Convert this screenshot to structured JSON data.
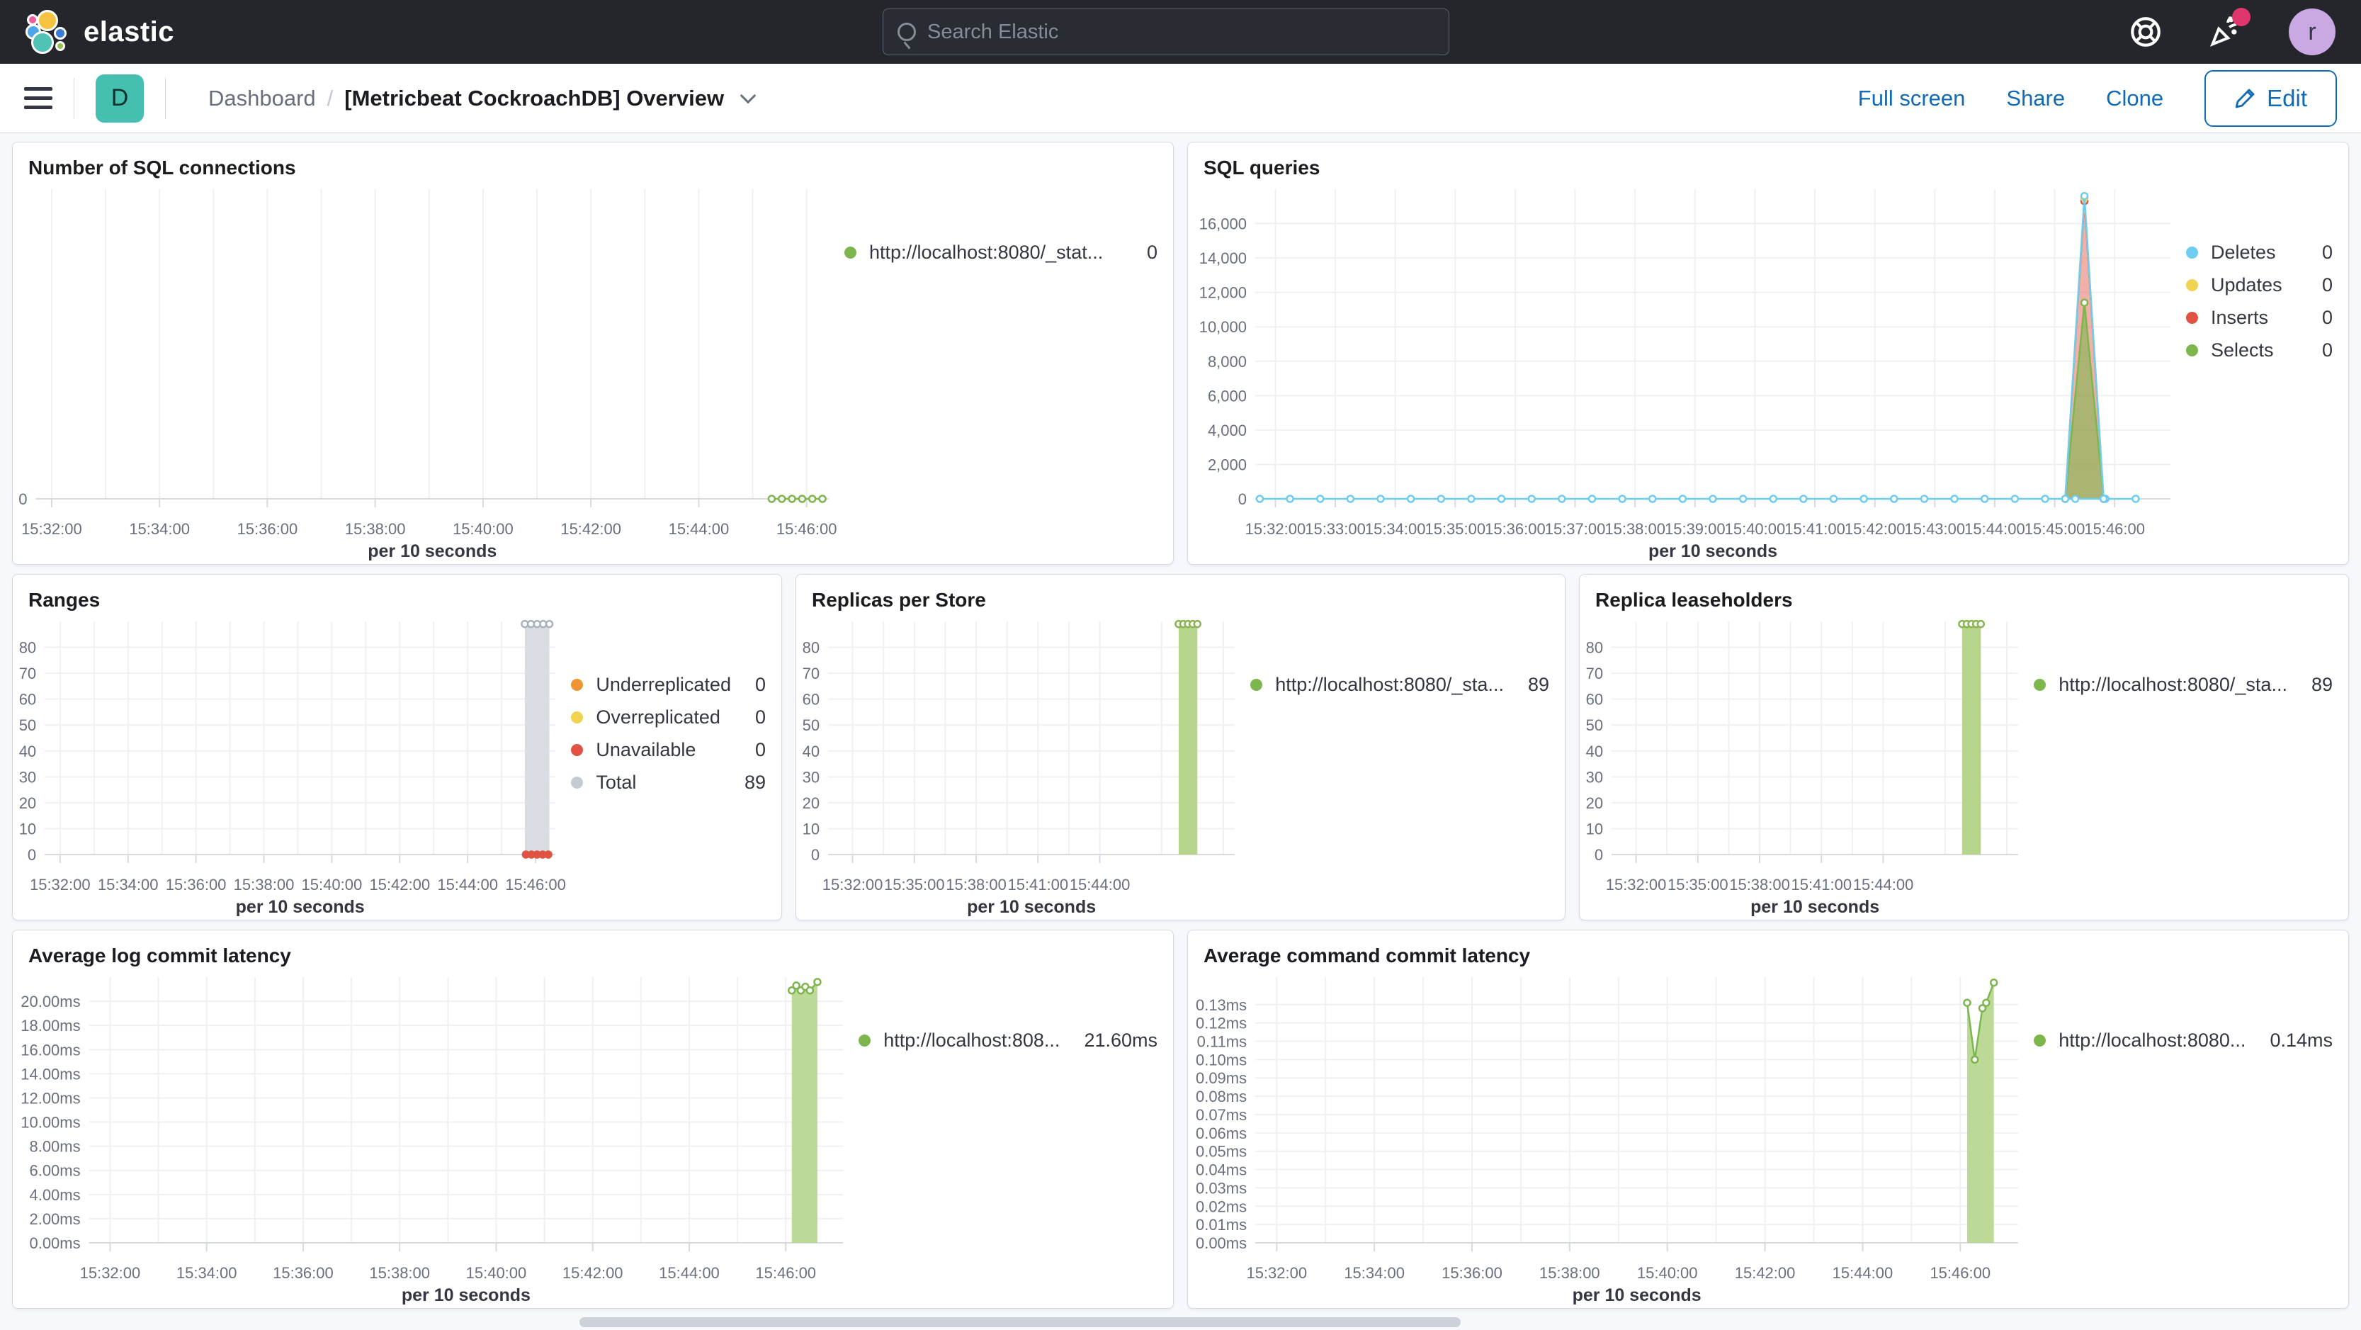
{
  "header": {
    "brand": "elastic",
    "search_placeholder": "Search Elastic",
    "avatar_initial": "r",
    "icons": [
      "help-icon",
      "news-icon",
      "user-avatar"
    ]
  },
  "navbar": {
    "space_badge": "D",
    "breadcrumb_root": "Dashboard",
    "breadcrumb_sep": "/",
    "title": "[Metricbeat CockroachDB] Overview",
    "action_fullscreen": "Full screen",
    "action_share": "Share",
    "action_clone": "Clone",
    "edit_label": "Edit"
  },
  "colors": {
    "green": "#7db64d",
    "green_fill": "#bcd998",
    "blue": "#6dccef",
    "yellow": "#f0d351",
    "red": "#e05343",
    "orange": "#ef9533",
    "gray": "#d9dce2",
    "gray_stroke": "#aab1bc",
    "accent_blue": "#0f6bb5",
    "teal_badge": "#45c0b0"
  },
  "chart_data": [
    {
      "type": "line",
      "title": "Number of SQL connections",
      "xlabel": "per 10 seconds",
      "ylim": [
        0,
        8
      ],
      "y_ticks": [
        {
          "v": 0,
          "label": "0"
        }
      ],
      "x_ticks": [
        {
          "f": 0.02,
          "label": "15:32:00"
        },
        {
          "f": 0.156,
          "label": "15:34:00"
        },
        {
          "f": 0.292,
          "label": "15:36:00"
        },
        {
          "f": 0.428,
          "label": "15:38:00"
        },
        {
          "f": 0.564,
          "label": "15:40:00"
        },
        {
          "f": 0.7,
          "label": "15:42:00"
        },
        {
          "f": 0.836,
          "label": "15:44:00"
        },
        {
          "f": 0.972,
          "label": "15:46:00"
        }
      ],
      "grid_minor": true,
      "series": [
        {
          "name": "http://localhost:8080/_stat...",
          "color": "#7db64d",
          "flat": {
            "value": 0,
            "x0": 0.928,
            "x1": 0.992,
            "markers": 6
          }
        }
      ],
      "legend": [
        {
          "label": "http://localhost:8080/_stat...",
          "value": "0",
          "color": "#7db64d"
        }
      ]
    },
    {
      "type": "line",
      "title": "SQL queries",
      "xlabel": "per 10 seconds",
      "ylim": [
        0,
        18000
      ],
      "y_ticks": [
        {
          "v": 16000,
          "label": "16,000"
        },
        {
          "v": 14000,
          "label": "14,000"
        },
        {
          "v": 12000,
          "label": "12,000"
        },
        {
          "v": 10000,
          "label": "10,000"
        },
        {
          "v": 8000,
          "label": "8,000"
        },
        {
          "v": 6000,
          "label": "6,000"
        },
        {
          "v": 4000,
          "label": "4,000"
        },
        {
          "v": 2000,
          "label": "2,000"
        },
        {
          "v": 0,
          "label": "0"
        }
      ],
      "x_ticks": [
        {
          "f": 0.022,
          "label": "15:32:00"
        },
        {
          "f": 0.0875,
          "label": "15:33:00"
        },
        {
          "f": 0.153,
          "label": "15:34:00"
        },
        {
          "f": 0.2185,
          "label": "15:35:00"
        },
        {
          "f": 0.284,
          "label": "15:36:00"
        },
        {
          "f": 0.3495,
          "label": "15:37:00"
        },
        {
          "f": 0.415,
          "label": "15:38:00"
        },
        {
          "f": 0.4805,
          "label": "15:39:00"
        },
        {
          "f": 0.546,
          "label": "15:40:00"
        },
        {
          "f": 0.6115,
          "label": "15:41:00"
        },
        {
          "f": 0.677,
          "label": "15:42:00"
        },
        {
          "f": 0.7425,
          "label": "15:43:00"
        },
        {
          "f": 0.808,
          "label": "15:44:00"
        },
        {
          "f": 0.8735,
          "label": "15:45:00"
        },
        {
          "f": 0.939,
          "label": "15:46:00"
        }
      ],
      "grid_minor": false,
      "series": [
        {
          "name": "Inserts",
          "color": "#e05343",
          "fill": "rgba(224,83,67,0.45)",
          "points": [
            [
              0.885,
              0
            ],
            [
              0.906,
              17300
            ],
            [
              0.927,
              0
            ]
          ],
          "markers": true
        },
        {
          "name": "Selects",
          "color": "#7db64d",
          "fill": "rgba(125,182,77,0.6)",
          "points": [
            [
              0.885,
              0
            ],
            [
              0.906,
              11400
            ],
            [
              0.927,
              0
            ]
          ],
          "markers": true
        },
        {
          "name": "Updates",
          "color": "#f0d351",
          "points": [
            [
              0.885,
              0
            ],
            [
              0.906,
              17500
            ],
            [
              0.927,
              0
            ]
          ],
          "markers": true
        },
        {
          "name": "Deletes",
          "color": "#6dccef",
          "flat": {
            "value": 0,
            "x0": 0.005,
            "x1": 0.962,
            "markers": 30
          },
          "points": [
            [
              0.885,
              0
            ],
            [
              0.906,
              17600
            ],
            [
              0.927,
              0
            ]
          ],
          "markers": true
        }
      ],
      "legend": [
        {
          "label": "Deletes",
          "value": "0",
          "color": "#6dccef"
        },
        {
          "label": "Updates",
          "value": "0",
          "color": "#f0d351"
        },
        {
          "label": "Inserts",
          "value": "0",
          "color": "#e05343"
        },
        {
          "label": "Selects",
          "value": "0",
          "color": "#7db64d"
        }
      ]
    },
    {
      "type": "bar",
      "title": "Ranges",
      "xlabel": "per 10 seconds",
      "ylim": [
        0,
        90
      ],
      "y_ticks": [
        {
          "v": 80,
          "label": "80"
        },
        {
          "v": 70,
          "label": "70"
        },
        {
          "v": 60,
          "label": "60"
        },
        {
          "v": 50,
          "label": "50"
        },
        {
          "v": 40,
          "label": "40"
        },
        {
          "v": 30,
          "label": "30"
        },
        {
          "v": 20,
          "label": "20"
        },
        {
          "v": 10,
          "label": "10"
        },
        {
          "v": 0,
          "label": "0"
        }
      ],
      "x_ticks": [
        {
          "f": 0.03,
          "label": "15:32:00"
        },
        {
          "f": 0.163,
          "label": "15:34:00"
        },
        {
          "f": 0.296,
          "label": "15:36:00"
        },
        {
          "f": 0.429,
          "label": "15:38:00"
        },
        {
          "f": 0.562,
          "label": "15:40:00"
        },
        {
          "f": 0.695,
          "label": "15:42:00"
        },
        {
          "f": 0.828,
          "label": "15:44:00"
        },
        {
          "f": 0.961,
          "label": "15:46:00"
        }
      ],
      "grid_minor": true,
      "series": [
        {
          "name": "Total",
          "color": "#aab1bc",
          "bar": {
            "x0": 0.94,
            "x1": 0.988,
            "value": 89,
            "fill": "#d9dce2",
            "top_markers": 5
          }
        },
        {
          "name": "Unavailable",
          "color": "#e05343",
          "flat": {
            "value": 0,
            "x0": 0.942,
            "x1": 0.986,
            "markers": 5,
            "solid": true
          }
        }
      ],
      "legend": [
        {
          "label": "Underreplicated",
          "value": "0",
          "color": "#ef9533"
        },
        {
          "label": "Overreplicated",
          "value": "0",
          "color": "#f0d351"
        },
        {
          "label": "Unavailable",
          "value": "0",
          "color": "#e05343"
        },
        {
          "label": "Total",
          "value": "89",
          "color": "#c6cbd3"
        }
      ]
    },
    {
      "type": "bar",
      "title": "Replicas per Store",
      "xlabel": "per 10 seconds",
      "ylim": [
        0,
        90
      ],
      "y_ticks": [
        {
          "v": 80,
          "label": "80"
        },
        {
          "v": 70,
          "label": "70"
        },
        {
          "v": 60,
          "label": "60"
        },
        {
          "v": 50,
          "label": "50"
        },
        {
          "v": 40,
          "label": "40"
        },
        {
          "v": 30,
          "label": "30"
        },
        {
          "v": 20,
          "label": "20"
        },
        {
          "v": 10,
          "label": "10"
        },
        {
          "v": 0,
          "label": "0"
        }
      ],
      "x_ticks": [
        {
          "f": 0.06,
          "label": "15:32:00"
        },
        {
          "f": 0.212,
          "label": "15:35:00"
        },
        {
          "f": 0.364,
          "label": "15:38:00"
        },
        {
          "f": 0.516,
          "label": "15:41:00"
        },
        {
          "f": 0.668,
          "label": "15:44:00"
        }
      ],
      "grid_minor": true,
      "grid_extra": [
        0.82,
        0.972
      ],
      "series": [
        {
          "name": "http://localhost:8080/_sta...",
          "color": "#8ab44f",
          "bar": {
            "x0": 0.862,
            "x1": 0.908,
            "value": 89,
            "fill": "#b7d48b",
            "top_markers": 5
          }
        }
      ],
      "legend": [
        {
          "label": "http://localhost:8080/_sta...",
          "value": "89",
          "color": "#7db64d"
        }
      ]
    },
    {
      "type": "bar",
      "title": "Replica leaseholders",
      "xlabel": "per 10 seconds",
      "ylim": [
        0,
        90
      ],
      "y_ticks": [
        {
          "v": 80,
          "label": "80"
        },
        {
          "v": 70,
          "label": "70"
        },
        {
          "v": 60,
          "label": "60"
        },
        {
          "v": 50,
          "label": "50"
        },
        {
          "v": 40,
          "label": "40"
        },
        {
          "v": 30,
          "label": "30"
        },
        {
          "v": 20,
          "label": "20"
        },
        {
          "v": 10,
          "label": "10"
        },
        {
          "v": 0,
          "label": "0"
        }
      ],
      "x_ticks": [
        {
          "f": 0.06,
          "label": "15:32:00"
        },
        {
          "f": 0.212,
          "label": "15:35:00"
        },
        {
          "f": 0.364,
          "label": "15:38:00"
        },
        {
          "f": 0.516,
          "label": "15:41:00"
        },
        {
          "f": 0.668,
          "label": "15:44:00"
        }
      ],
      "grid_minor": true,
      "grid_extra": [
        0.82,
        0.972
      ],
      "series": [
        {
          "name": "http://localhost:8080/_sta...",
          "color": "#8ab44f",
          "bar": {
            "x0": 0.862,
            "x1": 0.908,
            "value": 89,
            "fill": "#b7d48b",
            "top_markers": 5
          }
        }
      ],
      "legend": [
        {
          "label": "http://localhost:8080/_sta...",
          "value": "89",
          "color": "#7db64d"
        }
      ]
    },
    {
      "type": "area",
      "title": "Average log commit latency",
      "xlabel": "per 10 seconds",
      "ylim": [
        0,
        22
      ],
      "y_ticks": [
        {
          "v": 20,
          "label": "20.00ms"
        },
        {
          "v": 18,
          "label": "18.00ms"
        },
        {
          "v": 16,
          "label": "16.00ms"
        },
        {
          "v": 14,
          "label": "14.00ms"
        },
        {
          "v": 12,
          "label": "12.00ms"
        },
        {
          "v": 10,
          "label": "10.00ms"
        },
        {
          "v": 8,
          "label": "8.00ms"
        },
        {
          "v": 6,
          "label": "6.00ms"
        },
        {
          "v": 4,
          "label": "4.00ms"
        },
        {
          "v": 2,
          "label": "2.00ms"
        },
        {
          "v": 0,
          "label": "0.00ms"
        }
      ],
      "x_ticks": [
        {
          "f": 0.028,
          "label": "15:32:00"
        },
        {
          "f": 0.156,
          "label": "15:34:00"
        },
        {
          "f": 0.284,
          "label": "15:36:00"
        },
        {
          "f": 0.412,
          "label": "15:38:00"
        },
        {
          "f": 0.54,
          "label": "15:40:00"
        },
        {
          "f": 0.668,
          "label": "15:42:00"
        },
        {
          "f": 0.796,
          "label": "15:44:00"
        },
        {
          "f": 0.924,
          "label": "15:46:00"
        }
      ],
      "grid_minor": true,
      "series": [
        {
          "name": "http://localhost:808...",
          "color": "#7db64d",
          "fill": "#bcd998",
          "points": [
            [
              0.932,
              20.9
            ],
            [
              0.938,
              21.3
            ],
            [
              0.944,
              20.9
            ],
            [
              0.95,
              21.2
            ],
            [
              0.956,
              20.9
            ],
            [
              0.966,
              21.6
            ]
          ],
          "markers": true
        }
      ],
      "legend": [
        {
          "label": "http://localhost:808...",
          "value": "21.60ms",
          "color": "#7db64d"
        }
      ]
    },
    {
      "type": "area",
      "title": "Average command commit latency",
      "xlabel": "per 10 seconds",
      "ylim": [
        0,
        0.145
      ],
      "y_ticks": [
        {
          "v": 0.13,
          "label": "0.13ms"
        },
        {
          "v": 0.12,
          "label": "0.12ms"
        },
        {
          "v": 0.11,
          "label": "0.11ms"
        },
        {
          "v": 0.1,
          "label": "0.10ms"
        },
        {
          "v": 0.09,
          "label": "0.09ms"
        },
        {
          "v": 0.08,
          "label": "0.08ms"
        },
        {
          "v": 0.07,
          "label": "0.07ms"
        },
        {
          "v": 0.06,
          "label": "0.06ms"
        },
        {
          "v": 0.05,
          "label": "0.05ms"
        },
        {
          "v": 0.04,
          "label": "0.04ms"
        },
        {
          "v": 0.03,
          "label": "0.03ms"
        },
        {
          "v": 0.02,
          "label": "0.02ms"
        },
        {
          "v": 0.01,
          "label": "0.01ms"
        },
        {
          "v": 0.0,
          "label": "0.00ms"
        }
      ],
      "x_ticks": [
        {
          "f": 0.028,
          "label": "15:32:00"
        },
        {
          "f": 0.156,
          "label": "15:34:00"
        },
        {
          "f": 0.284,
          "label": "15:36:00"
        },
        {
          "f": 0.412,
          "label": "15:38:00"
        },
        {
          "f": 0.54,
          "label": "15:40:00"
        },
        {
          "f": 0.668,
          "label": "15:42:00"
        },
        {
          "f": 0.796,
          "label": "15:44:00"
        },
        {
          "f": 0.924,
          "label": "15:46:00"
        }
      ],
      "grid_minor": true,
      "series": [
        {
          "name": "http://localhost:8080...",
          "color": "#7db64d",
          "fill": "#bcd998",
          "points": [
            [
              0.933,
              0.131
            ],
            [
              0.943,
              0.1
            ],
            [
              0.953,
              0.128
            ],
            [
              0.958,
              0.131
            ],
            [
              0.968,
              0.142
            ]
          ],
          "markers": true
        }
      ],
      "legend": [
        {
          "label": "http://localhost:8080...",
          "value": "0.14ms",
          "color": "#7db64d"
        }
      ]
    }
  ]
}
